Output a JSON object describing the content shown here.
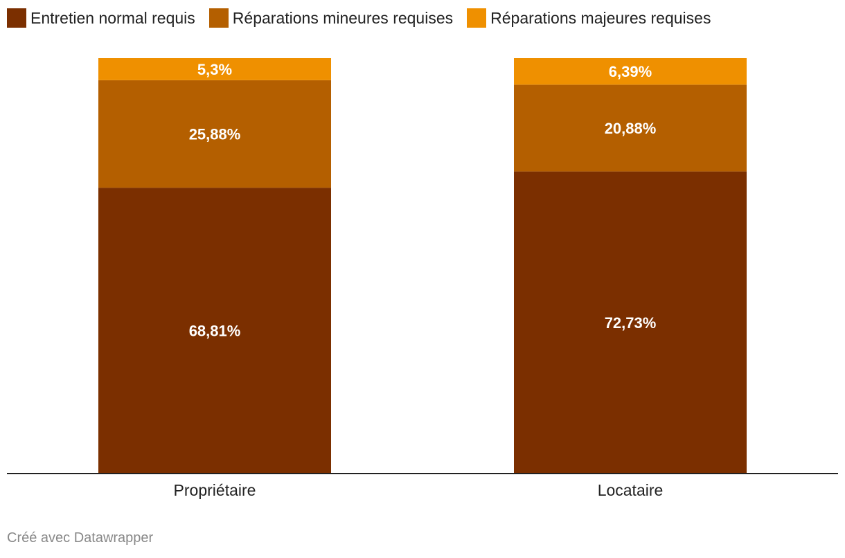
{
  "chart_data": {
    "type": "bar",
    "stacked": true,
    "unit": "%",
    "categories": [
      "Propriétaire",
      "Locataire"
    ],
    "series": [
      {
        "name": "Entretien normal requis",
        "values": [
          68.81,
          72.73
        ],
        "labels": [
          "68,81%",
          "72,73%"
        ],
        "color": "#7b2f00"
      },
      {
        "name": "Réparations mineures requises",
        "values": [
          25.88,
          20.88
        ],
        "labels": [
          "25,88%",
          "20,88%"
        ],
        "color": "#b45f00"
      },
      {
        "name": "Réparations majeures requises",
        "values": [
          5.3,
          6.39
        ],
        "labels": [
          "5,3%",
          "6,39%"
        ],
        "color": "#ef9000"
      }
    ],
    "ylim": [
      0,
      100
    ],
    "legend_position": "top-left",
    "grid": false
  },
  "footer": {
    "text": "Créé avec Datawrapper"
  },
  "colors": {
    "axis": "#222222",
    "value_label": "#ffffff",
    "footer": "#888888"
  }
}
